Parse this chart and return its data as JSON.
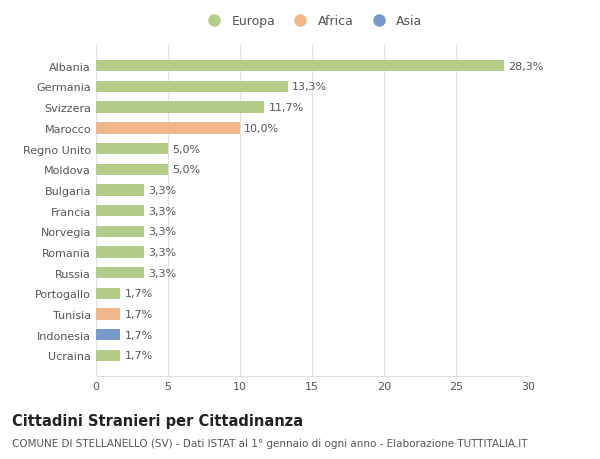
{
  "categories": [
    "Albania",
    "Germania",
    "Svizzera",
    "Marocco",
    "Regno Unito",
    "Moldova",
    "Bulgaria",
    "Francia",
    "Norvegia",
    "Romania",
    "Russia",
    "Portogallo",
    "Tunisia",
    "Indonesia",
    "Ucraina"
  ],
  "values": [
    28.3,
    13.3,
    11.7,
    10.0,
    5.0,
    5.0,
    3.3,
    3.3,
    3.3,
    3.3,
    3.3,
    1.7,
    1.7,
    1.7,
    1.7
  ],
  "labels": [
    "28,3%",
    "13,3%",
    "11,7%",
    "10,0%",
    "5,0%",
    "5,0%",
    "3,3%",
    "3,3%",
    "3,3%",
    "3,3%",
    "3,3%",
    "1,7%",
    "1,7%",
    "1,7%",
    "1,7%"
  ],
  "continents": [
    "Europa",
    "Europa",
    "Europa",
    "Africa",
    "Europa",
    "Europa",
    "Europa",
    "Europa",
    "Europa",
    "Europa",
    "Europa",
    "Europa",
    "Africa",
    "Asia",
    "Europa"
  ],
  "colors": {
    "Europa": "#b3cc8a",
    "Africa": "#f0b88a",
    "Asia": "#7799cc"
  },
  "xlim": [
    0,
    30
  ],
  "xticks": [
    0,
    5,
    10,
    15,
    20,
    25,
    30
  ],
  "title": "Cittadini Stranieri per Cittadinanza",
  "subtitle": "COMUNE DI STELLANELLO (SV) - Dati ISTAT al 1° gennaio di ogni anno - Elaborazione TUTTITALIA.IT",
  "background_color": "#ffffff",
  "bar_height": 0.55,
  "label_fontsize": 8,
  "tick_fontsize": 8,
  "title_fontsize": 10.5,
  "subtitle_fontsize": 7.5,
  "legend_fontsize": 9,
  "grid_color": "#e0e0e0",
  "text_color": "#555555",
  "title_color": "#222222"
}
